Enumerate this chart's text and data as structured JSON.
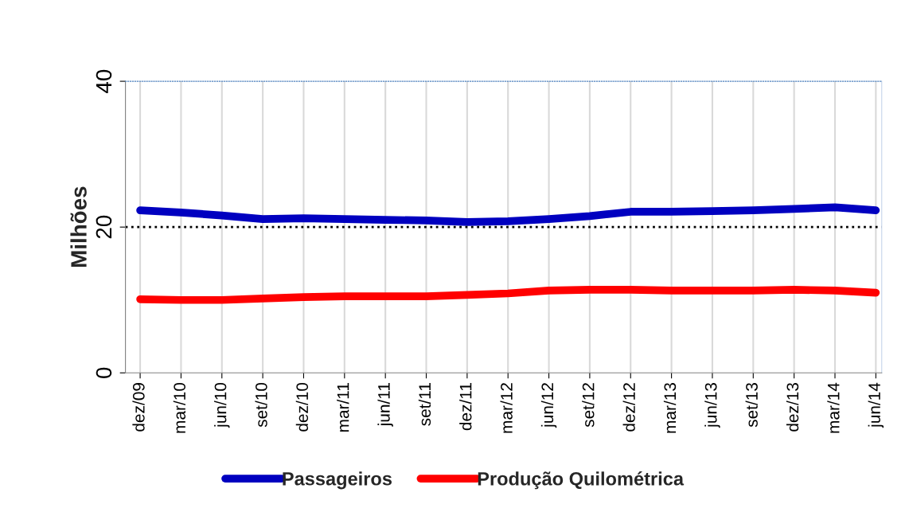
{
  "chart_data": {
    "type": "line",
    "ylabel": "Milhões",
    "categories": [
      "dez/09",
      "mar/10",
      "jun/10",
      "set/10",
      "dez/10",
      "mar/11",
      "jun/11",
      "set/11",
      "dez/11",
      "mar/12",
      "jun/12",
      "set/12",
      "dez/12",
      "mar/13",
      "jun/13",
      "set/13",
      "dez/13",
      "mar/14",
      "jun/14"
    ],
    "series": [
      {
        "name": "Passageiros",
        "color": "#0000c0",
        "values": [
          22.3,
          22.0,
          21.6,
          21.1,
          21.2,
          21.1,
          21.0,
          20.9,
          20.7,
          20.8,
          21.1,
          21.5,
          22.1,
          22.1,
          22.2,
          22.3,
          22.5,
          22.7,
          22.3
        ]
      },
      {
        "name": "Produção Quilométrica",
        "color": "#ff0000",
        "values": [
          10.1,
          10.0,
          10.0,
          10.2,
          10.4,
          10.5,
          10.5,
          10.5,
          10.7,
          10.9,
          11.3,
          11.4,
          11.4,
          11.3,
          11.3,
          11.3,
          11.4,
          11.3,
          11.0
        ]
      }
    ],
    "ylim": [
      0,
      40
    ],
    "yticks": [
      0,
      20,
      40
    ],
    "ref_lines": [
      {
        "axis": "y",
        "value": 20,
        "color": "#000000",
        "line_style": "dotted"
      }
    ],
    "grid": "x",
    "legend": "bottom",
    "marker": "none",
    "line_style": "solid"
  }
}
